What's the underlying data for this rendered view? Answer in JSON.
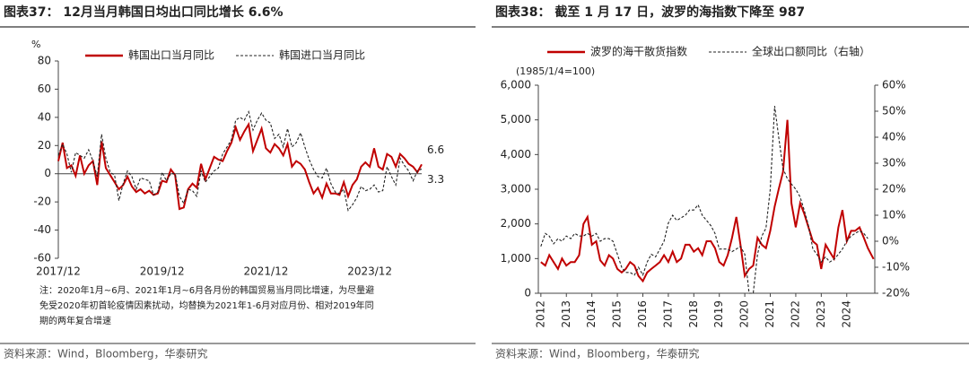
{
  "chart_data": [
    {
      "type": "line",
      "title": "图表37： 12月当月韩国日均出口同比增长 6.6%",
      "y_label": "%",
      "categories": [
        "2017/12",
        null,
        null,
        null,
        null,
        null,
        null,
        null,
        null,
        null,
        null,
        null,
        null,
        null,
        null,
        null,
        null,
        null,
        null,
        null,
        null,
        null,
        null,
        null,
        "2019/12",
        null,
        null,
        null,
        null,
        null,
        null,
        null,
        null,
        null,
        null,
        null,
        null,
        null,
        null,
        null,
        null,
        null,
        null,
        null,
        null,
        null,
        null,
        null,
        "2021/12",
        null,
        null,
        null,
        null,
        null,
        null,
        null,
        null,
        null,
        null,
        null,
        null,
        null,
        null,
        null,
        null,
        null,
        null,
        null,
        null,
        null,
        null,
        null,
        "2023/12",
        null,
        null,
        null,
        null,
        null,
        null,
        null,
        null,
        null,
        null,
        null,
        null
      ],
      "series": [
        {
          "name": "韩国出口当月同比",
          "color": "#c00000",
          "dash": false,
          "values": [
            9,
            22,
            4,
            6,
            -1.5,
            13,
            0,
            6,
            9,
            -8,
            23,
            4,
            -1,
            -6,
            -11,
            -8,
            -2,
            -9,
            -13,
            -11,
            -14,
            -12,
            -15,
            -14,
            -5,
            -6,
            3,
            -1,
            -25,
            -24,
            -11,
            -7,
            -10,
            7,
            -4,
            4,
            12,
            10,
            9,
            16,
            22,
            33,
            24,
            30,
            35,
            16,
            24,
            32,
            18,
            15,
            21,
            18,
            13,
            21,
            5,
            9,
            7,
            3,
            -6,
            -14,
            -10,
            -17,
            -7,
            -14,
            -14,
            -15,
            -6,
            -16,
            -8,
            -4,
            5,
            8,
            5,
            18,
            5,
            3,
            14,
            12,
            5,
            14,
            11,
            7,
            5,
            1,
            6.6
          ]
        },
        {
          "name": "韩国进口当月同比",
          "color": "#222222",
          "dash": true,
          "values": [
            13,
            21,
            14,
            1,
            15,
            13,
            11,
            17,
            9,
            -2,
            28,
            11,
            1,
            -1,
            -19,
            -7,
            2,
            -2,
            -11,
            -3,
            -4,
            -5,
            -15,
            -13,
            1,
            -5,
            0,
            0,
            -16,
            -21,
            -11,
            -12,
            -16,
            2,
            -6,
            -2,
            2,
            4,
            14,
            19,
            24,
            38,
            40,
            38,
            44,
            31,
            38,
            43,
            38,
            36,
            25,
            28,
            19,
            32,
            19,
            22,
            29,
            19,
            10,
            3,
            -2,
            -3,
            4,
            -7,
            -13,
            -14,
            -11,
            -26,
            -22,
            -17,
            -9,
            -12,
            -11,
            -8,
            -13,
            -12,
            5,
            -2,
            -8,
            11,
            6,
            2,
            -5,
            2,
            3.3
          ]
        }
      ],
      "annotations": [
        "6.6",
        "3.3"
      ],
      "ylim": [
        -60,
        80
      ],
      "yticks": [
        -60,
        -40,
        -20,
        0,
        20,
        40,
        60,
        80
      ],
      "note": [
        "注：2020年1月~6月、2021年1月~6月各月份的韩国贸易当月同比增速，为尽量避",
        "免受2020年初首轮疫情因素扰动，均替换为2021年1-6月对应月份、相对2019年同",
        "期的两年复合增速"
      ],
      "source": "资料来源：Wind，Bloomberg，华泰研究"
    },
    {
      "type": "line",
      "title": "图表38： 截至 1 月 17 日，波罗的海指数下降至 987",
      "y_label": "(1985/1/4=100)",
      "x": [
        2012,
        2012.17,
        2012.33,
        2012.5,
        2012.67,
        2012.83,
        2013,
        2013.17,
        2013.33,
        2013.5,
        2013.67,
        2013.83,
        2014,
        2014.17,
        2014.33,
        2014.5,
        2014.67,
        2014.83,
        2015,
        2015.17,
        2015.33,
        2015.5,
        2015.67,
        2015.83,
        2016,
        2016.17,
        2016.33,
        2016.5,
        2016.67,
        2016.83,
        2017,
        2017.17,
        2017.33,
        2017.5,
        2017.67,
        2017.83,
        2018,
        2018.17,
        2018.33,
        2018.5,
        2018.67,
        2018.83,
        2019,
        2019.17,
        2019.33,
        2019.5,
        2019.67,
        2019.83,
        2020,
        2020.17,
        2020.33,
        2020.5,
        2020.67,
        2020.83,
        2021,
        2021.17,
        2021.33,
        2021.5,
        2021.67,
        2021.83,
        2022,
        2022.17,
        2022.33,
        2022.5,
        2022.67,
        2022.83,
        2023,
        2023.17,
        2023.33,
        2023.5,
        2023.67,
        2023.83,
        2024,
        2024.17,
        2024.33,
        2024.5,
        2024.67,
        2024.83,
        2025.05
      ],
      "series": [
        {
          "name": "波罗的海干散货指数",
          "color": "#c00000",
          "dash": false,
          "values": [
            900,
            800,
            1100,
            900,
            700,
            1000,
            800,
            900,
            900,
            1100,
            2000,
            2200,
            1400,
            1500,
            950,
            800,
            1100,
            1000,
            700,
            600,
            700,
            900,
            800,
            500,
            350,
            600,
            700,
            800,
            900,
            1100,
            900,
            1200,
            900,
            1000,
            1400,
            1400,
            1200,
            1300,
            1100,
            1500,
            1500,
            1300,
            900,
            800,
            1100,
            1600,
            2200,
            1400,
            500,
            700,
            800,
            1600,
            1400,
            1300,
            1800,
            2500,
            3000,
            3500,
            5000,
            2600,
            1900,
            2600,
            2300,
            1900,
            1500,
            1400,
            700,
            1400,
            1200,
            1000,
            1900,
            2400,
            1500,
            1800,
            1800,
            1900,
            1600,
            1300,
            987
          ]
        },
        {
          "name": "全球出口额同比（右轴）",
          "color": "#222222",
          "dash": true,
          "axis": "y2",
          "values": [
            -2,
            3,
            2,
            -1,
            1,
            0,
            2,
            1,
            3,
            2,
            2,
            3,
            2,
            3,
            0,
            1,
            1,
            0,
            -5,
            -10,
            -12,
            -12,
            -13,
            -10,
            -13,
            -8,
            -5,
            -6,
            -3,
            0,
            7,
            10,
            8,
            9,
            10,
            12,
            12,
            14,
            10,
            8,
            6,
            3,
            -3,
            -3,
            -3,
            -4,
            -3,
            -2,
            -5,
            -20,
            -20,
            -5,
            2,
            5,
            20,
            52,
            40,
            28,
            24,
            22,
            20,
            17,
            12,
            6,
            -3,
            -5,
            -8,
            -6,
            -8,
            -7,
            -5,
            -3,
            0,
            2,
            3,
            4,
            3,
            1,
            null
          ]
        }
      ],
      "xlim": [
        2011.9,
        2025.1
      ],
      "xticks": [
        2012,
        2013,
        2014,
        2015,
        2016,
        2017,
        2018,
        2019,
        2020,
        2021,
        2022,
        2023,
        2024
      ],
      "ylim": [
        0,
        6000
      ],
      "yticks": [
        0,
        {
          "value": 1000,
          "label": "1,000"
        },
        {
          "value": 2000,
          "label": "2,000"
        },
        {
          "value": 3000,
          "label": "3,000"
        },
        {
          "value": 4000,
          "label": "4,000"
        },
        {
          "value": 5000,
          "label": "5,000"
        },
        {
          "value": 6000,
          "label": "6,000"
        }
      ],
      "y2lim": [
        -20,
        60
      ],
      "y2ticks": [
        {
          "value": -20,
          "label": "-20%"
        },
        {
          "value": -10,
          "label": "-10%"
        },
        {
          "value": 0,
          "label": "0%"
        },
        {
          "value": 10,
          "label": "10%"
        },
        {
          "value": 20,
          "label": "20%"
        },
        {
          "value": 30,
          "label": "30%"
        },
        {
          "value": 40,
          "label": "40%"
        },
        {
          "value": 50,
          "label": "50%"
        },
        {
          "value": 60,
          "label": "60%"
        }
      ],
      "source": "资料来源：Wind，Bloomberg，华泰研究"
    }
  ]
}
